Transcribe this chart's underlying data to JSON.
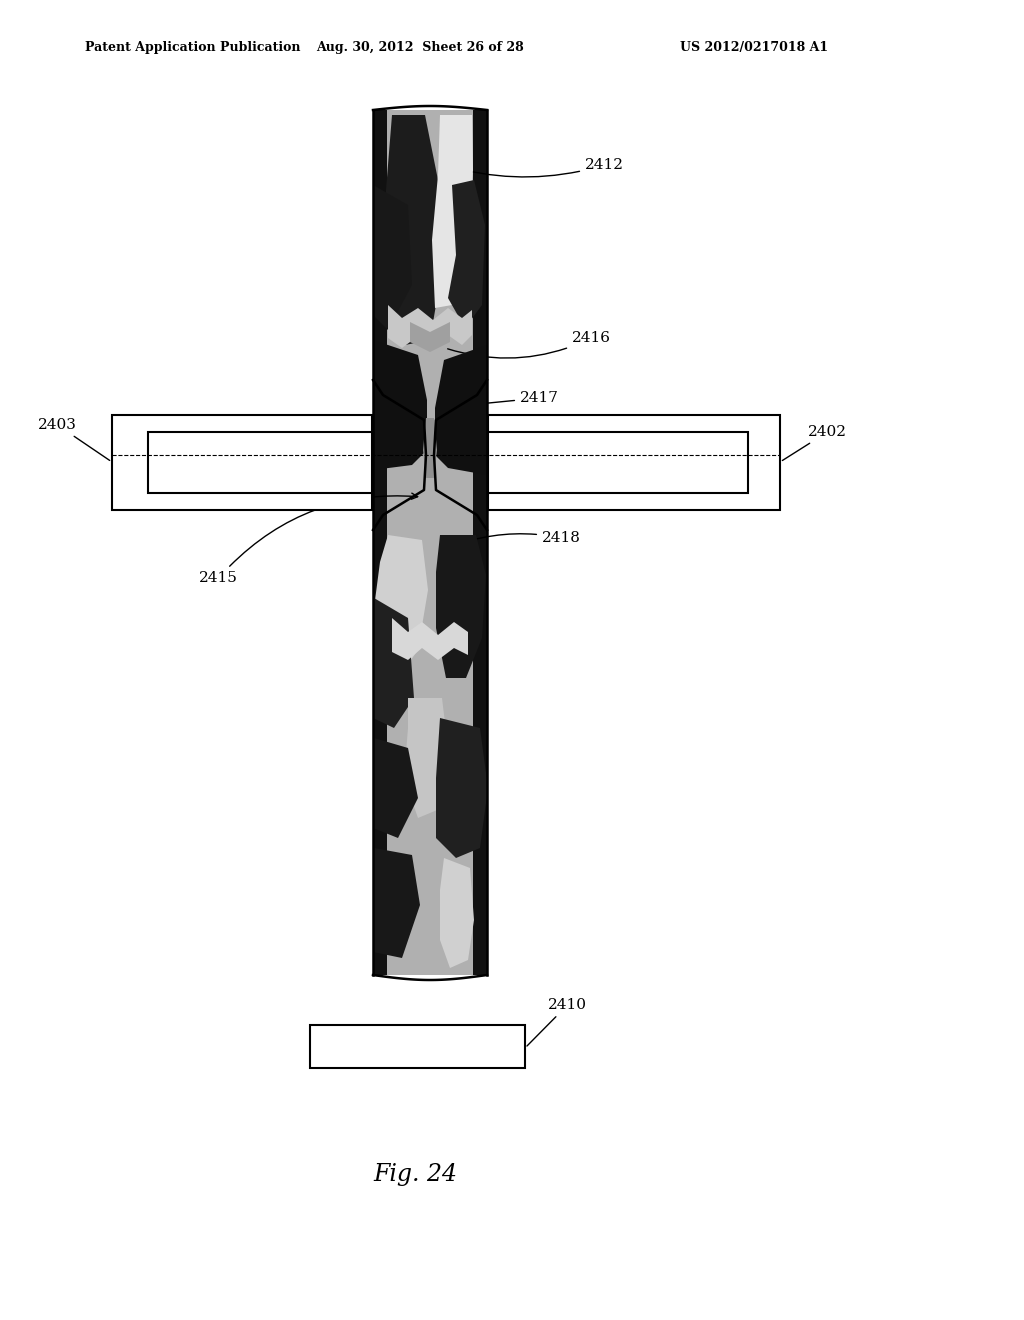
{
  "title_left": "Patent Application Publication",
  "title_mid": "Aug. 30, 2012  Sheet 26 of 28",
  "title_right": "US 2012/0217018 A1",
  "fig_label": "Fig. 24",
  "bg_color": "#ffffff",
  "line_color": "#000000"
}
